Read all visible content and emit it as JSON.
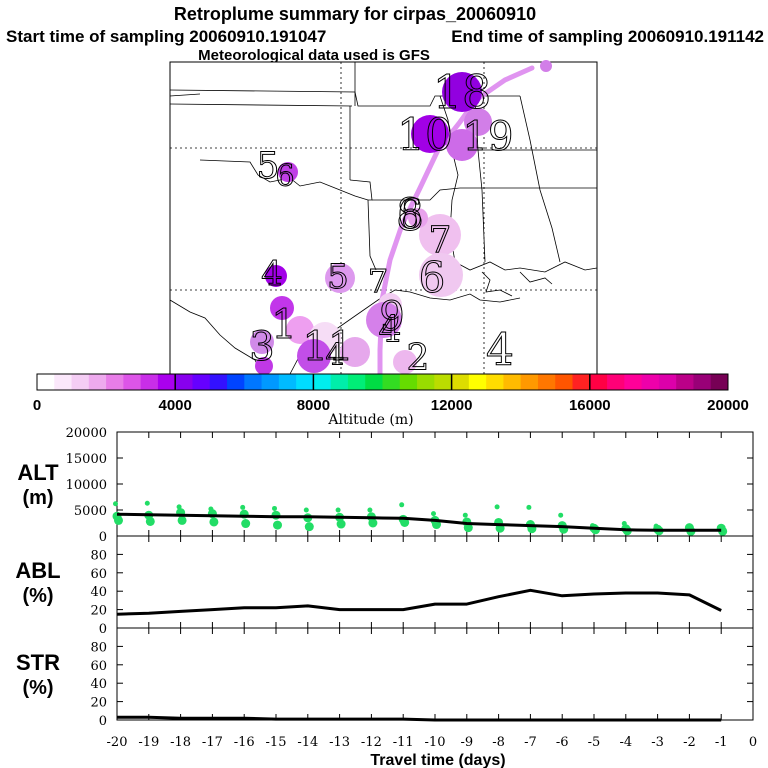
{
  "header": {
    "title": "Retroplume summary for cirpas_20060910",
    "start_label": "Start time of sampling 20060910.191047",
    "end_label": "End time of sampling 20060910.191142",
    "met_label": "Meteorological data used is GFS"
  },
  "colorbar": {
    "label": "Altitude (m)",
    "ticks": [
      "0",
      "4000",
      "8000",
      "12000",
      "16000",
      "20000"
    ],
    "range": [
      0,
      20000
    ],
    "colors": [
      "#ffffff",
      "#fbe8fb",
      "#f4cdf4",
      "#eeaaee",
      "#e87de8",
      "#dd55e8",
      "#c92ee8",
      "#aa00ee",
      "#8800ee",
      "#6600ff",
      "#3311ff",
      "#0044ff",
      "#0077ff",
      "#0099ff",
      "#00bbff",
      "#00ddff",
      "#00eeee",
      "#00eeaa",
      "#00ee77",
      "#00dd44",
      "#33dd22",
      "#66dd00",
      "#99dd00",
      "#bbdd00",
      "#dddd00",
      "#ffff00",
      "#ffdd00",
      "#ffbb00",
      "#ff9900",
      "#ff7700",
      "#ff5500",
      "#ff2222",
      "#ff0044",
      "#ff0077",
      "#ff0099",
      "#ee00aa",
      "#dd00aa",
      "#bb0088",
      "#990077",
      "#770055"
    ]
  },
  "map": {
    "plume_color": "#dd88ee",
    "labels": [
      {
        "text": "10"
      },
      {
        "text": "18"
      },
      {
        "text": "19"
      },
      {
        "text": "8"
      },
      {
        "text": "5"
      },
      {
        "text": "6"
      },
      {
        "text": "6"
      },
      {
        "text": "7"
      },
      {
        "text": "4"
      },
      {
        "text": "5"
      },
      {
        "text": "7"
      },
      {
        "text": "6"
      },
      {
        "text": "9"
      },
      {
        "text": "4"
      },
      {
        "text": "4"
      },
      {
        "text": "1"
      },
      {
        "text": "11"
      },
      {
        "text": "3"
      },
      {
        "text": "2"
      },
      {
        "text": "4"
      }
    ]
  },
  "chart_data": [
    {
      "type": "scatter",
      "name": "ALT",
      "ylabel": "ALT (m)",
      "ylim": [
        0,
        20000
      ],
      "yticks": [
        "0",
        "5000",
        "10000",
        "15000",
        "20000"
      ],
      "xlim": [
        -20,
        0
      ],
      "point_color": "#22dd66",
      "x": [
        -20,
        -19,
        -18,
        -17,
        -16,
        -15,
        -14,
        -13,
        -12,
        -11,
        -10,
        -9,
        -8,
        -7,
        -6,
        -5,
        -4,
        -3,
        -2,
        -1
      ],
      "mean": [
        4200,
        4100,
        4000,
        3900,
        3800,
        3700,
        3700,
        3600,
        3500,
        3400,
        3000,
        2400,
        2200,
        2000,
        1800,
        1500,
        1200,
        1100,
        1100,
        1100
      ],
      "points": [
        [
          6200,
          3800,
          3000
        ],
        [
          6300,
          4000,
          2800
        ],
        [
          5600,
          4500,
          3000
        ],
        [
          5200,
          4300,
          2700
        ],
        [
          5500,
          4200,
          2400
        ],
        [
          5300,
          4000,
          2100
        ],
        [
          5000,
          3500,
          1800
        ],
        [
          5000,
          3600,
          2300
        ],
        [
          5000,
          3700,
          2500
        ],
        [
          6000,
          3200,
          2600
        ],
        [
          4300,
          3000,
          2200
        ],
        [
          4000,
          2700,
          1600
        ],
        [
          5600,
          2600,
          1500
        ],
        [
          5500,
          2200,
          1400
        ],
        [
          4000,
          2000,
          1300
        ],
        [
          2000,
          1500,
          1200
        ],
        [
          2400,
          1400,
          1000
        ],
        [
          1900,
          1300,
          1000
        ],
        [
          1800,
          1600,
          900
        ],
        [
          1700,
          1500,
          900
        ]
      ]
    },
    {
      "type": "line",
      "name": "ABL",
      "ylabel": "ABL (%)",
      "ylim": [
        0,
        100
      ],
      "yticks": [
        "0",
        "20",
        "40",
        "60",
        "80"
      ],
      "xlim": [
        -20,
        0
      ],
      "x": [
        -20,
        -19,
        -18,
        -17,
        -16,
        -15,
        -14,
        -13,
        -12,
        -11,
        -10,
        -9,
        -8,
        -7,
        -6,
        -5,
        -4,
        -3,
        -2,
        -1
      ],
      "values": [
        15,
        16,
        18,
        20,
        22,
        22,
        24,
        20,
        20,
        20,
        26,
        26,
        34,
        41,
        35,
        37,
        38,
        38,
        36,
        19
      ]
    },
    {
      "type": "line",
      "name": "STR",
      "ylabel": "STR (%)",
      "ylim": [
        0,
        100
      ],
      "yticks": [
        "0",
        "20",
        "40",
        "60",
        "80"
      ],
      "xlim": [
        -20,
        0
      ],
      "xlabel": "Travel time (days)",
      "xticks": [
        "-20",
        "-19",
        "-18",
        "-17",
        "-16",
        "-15",
        "-14",
        "-13",
        "-12",
        "-11",
        "-10",
        "-9",
        "-8",
        "-7",
        "-6",
        "-5",
        "-4",
        "-3",
        "-2",
        "-1",
        "0"
      ],
      "x": [
        -20,
        -19,
        -18,
        -17,
        -16,
        -15,
        -14,
        -13,
        -12,
        -11,
        -10,
        -9,
        -8,
        -7,
        -6,
        -5,
        -4,
        -3,
        -2,
        -1
      ],
      "values": [
        3,
        3,
        2,
        2,
        2,
        1,
        1,
        1,
        1,
        1,
        0,
        0,
        0,
        0,
        0,
        0,
        0,
        0,
        0,
        0
      ]
    }
  ]
}
